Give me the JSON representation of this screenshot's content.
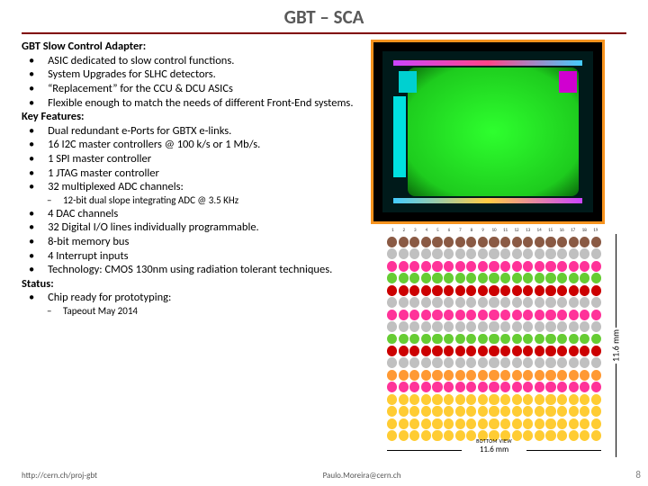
{
  "title": "GBT – SCA",
  "sections": {
    "adapter": {
      "header": "GBT Slow Control Adapter:",
      "items": [
        "ASIC dedicated to slow control functions.",
        "System Upgrades for SLHC detectors.",
        "“Replacement” for the CCU & DCU ASICs",
        "Flexible enough to match the needs of different Front-End systems."
      ]
    },
    "features": {
      "header": "Key Features:",
      "items": [
        "Dual redundant e-Ports for GBTX e-links.",
        "16 I2C master controllers @ 100 k/s or 1 Mb/s.",
        "1 SPI master controller",
        "1 JTAG master controller",
        "32 multiplexed ADC channels:"
      ],
      "sub1": "12-bit dual slope integrating ADC @ 3.5 KHz",
      "items2": [
        "4 DAC channels",
        "32 Digital I/O lines individually programmable.",
        "8-bit memory bus",
        "4 Interrupt inputs",
        "Technology: CMOS 130nm using radiation tolerant techniques."
      ]
    },
    "status": {
      "header": "Status:",
      "items": [
        "Chip ready for prototyping:"
      ],
      "sub1": "Tapeout May 2014"
    }
  },
  "floorplan": {
    "caption": "BOTTOM VIEW",
    "dim_h": "11.6 mm",
    "dim_v": "11.6 mm",
    "cols": 19,
    "rows": 17,
    "row_colors": [
      "#8a5a44",
      "#c0c0c0",
      "#ff3399",
      "#66cc33",
      "#cc0000",
      "#c0c0c0",
      "#ff3399",
      "#c0c0c0",
      "#66cc33",
      "#cc0000",
      "#c0c0c0",
      "#ff9933",
      "#ff3399",
      "#ffcc33",
      "#ffcc33",
      "#ffcc33",
      "#ffcc33"
    ],
    "col_labels": [
      "1",
      "2",
      "3",
      "4",
      "5",
      "6",
      "7",
      "8",
      "9",
      "10",
      "11",
      "12",
      "13",
      "14",
      "15",
      "16",
      "17",
      "18",
      "19"
    ]
  },
  "side_dim": "11.6 mm",
  "footer": {
    "left": "http://cern.ch/proj-gbt",
    "center": "Paulo.Moreira@cern.ch"
  },
  "page_number": "8",
  "colors": {
    "rule": "#800000",
    "title": "#595959",
    "chip_border": "#f7931e"
  }
}
